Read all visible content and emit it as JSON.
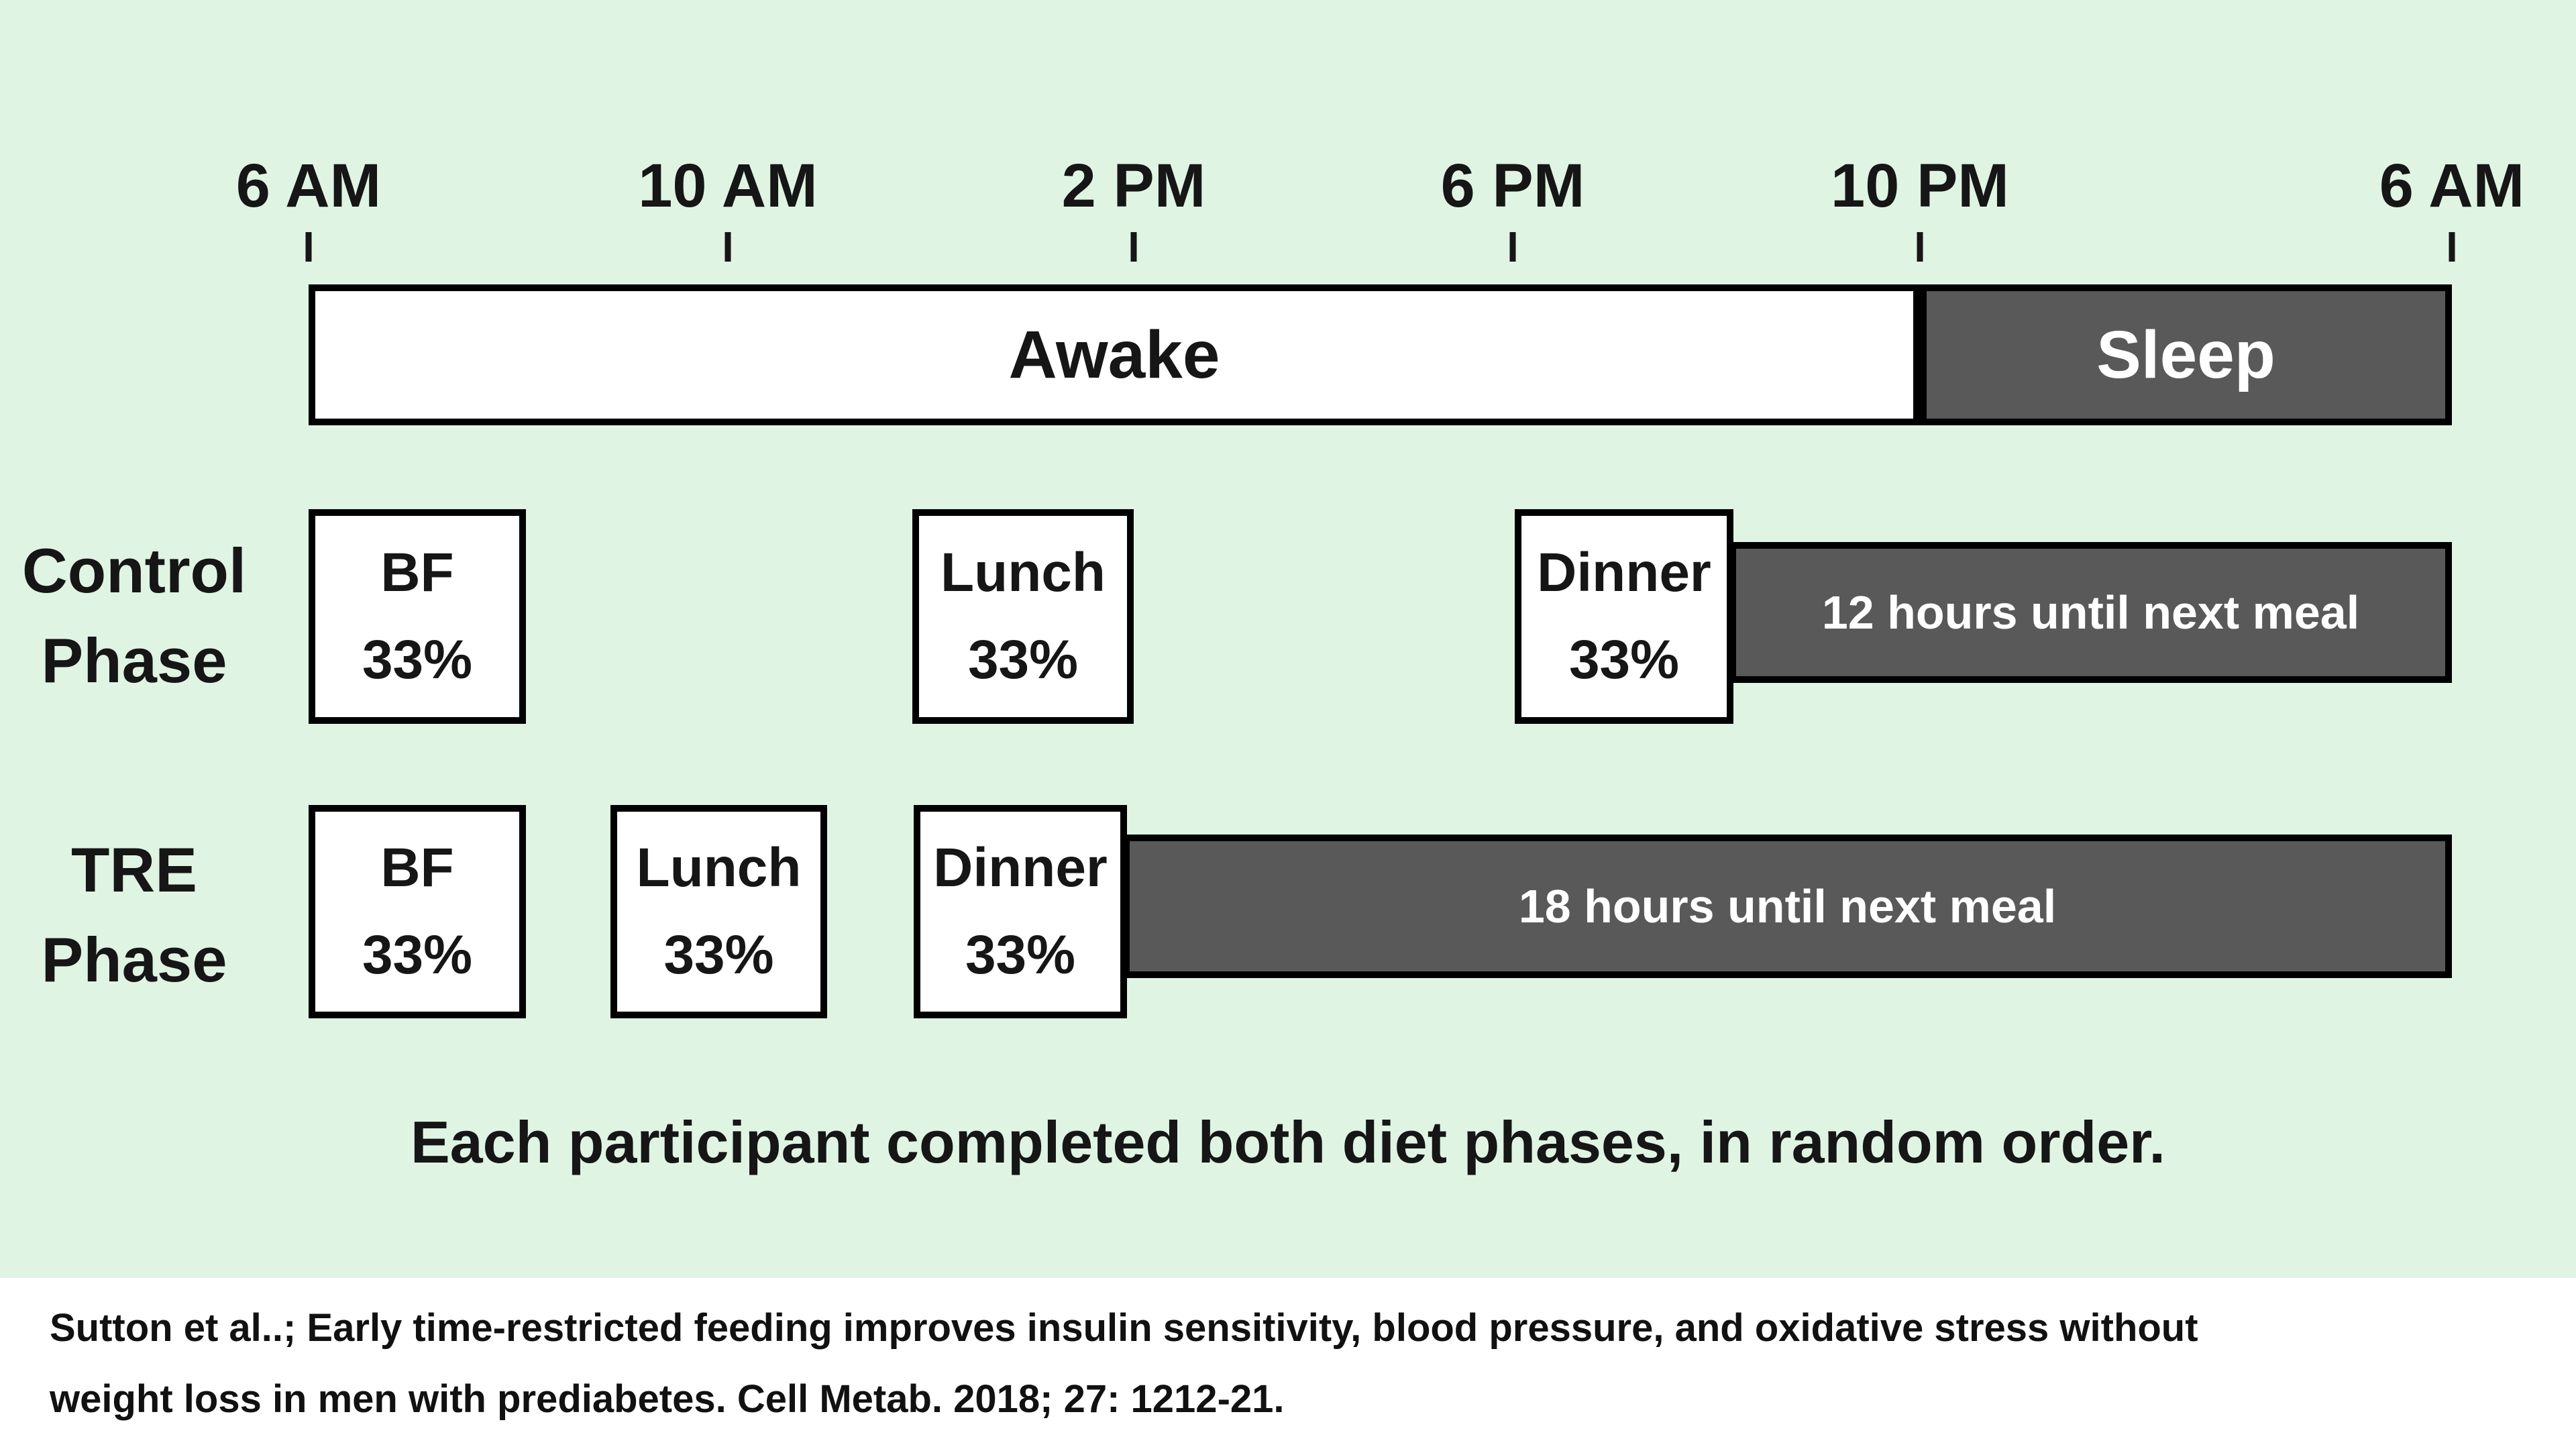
{
  "colors": {
    "background": "#e0f4e3",
    "dark_bar": "#595959",
    "border": "#000000",
    "text": "#161616",
    "bar_text": "#ffffff",
    "footer_background": "#ffffff"
  },
  "timeline": {
    "tick_labels": [
      "6 AM",
      "10 AM",
      "2 PM",
      "6 PM",
      "10 PM",
      "6 AM"
    ],
    "awake_label": "Awake",
    "sleep_label": "Sleep"
  },
  "rows": [
    {
      "phase_line1": "Control",
      "phase_line2": "Phase",
      "meals": [
        {
          "name": "BF",
          "share": "33%"
        },
        {
          "name": "Lunch",
          "share": "33%"
        },
        {
          "name": "Dinner",
          "share": "33%"
        }
      ],
      "fasting_label": "12 hours until next meal"
    },
    {
      "phase_line1": "TRE",
      "phase_line2": "Phase",
      "meals": [
        {
          "name": "BF",
          "share": "33%"
        },
        {
          "name": "Lunch",
          "share": "33%"
        },
        {
          "name": "Dinner",
          "share": "33%"
        }
      ],
      "fasting_label": "18 hours until next meal"
    }
  ],
  "caption": "Each participant completed both diet phases, in random order.",
  "citation": {
    "line1": "Sutton et al..; Early time-restricted feeding improves insulin sensitivity, blood pressure, and oxidative stress without",
    "line2": "weight loss in men with prediabetes. Cell Metab. 2018; 27: 1212-21."
  }
}
